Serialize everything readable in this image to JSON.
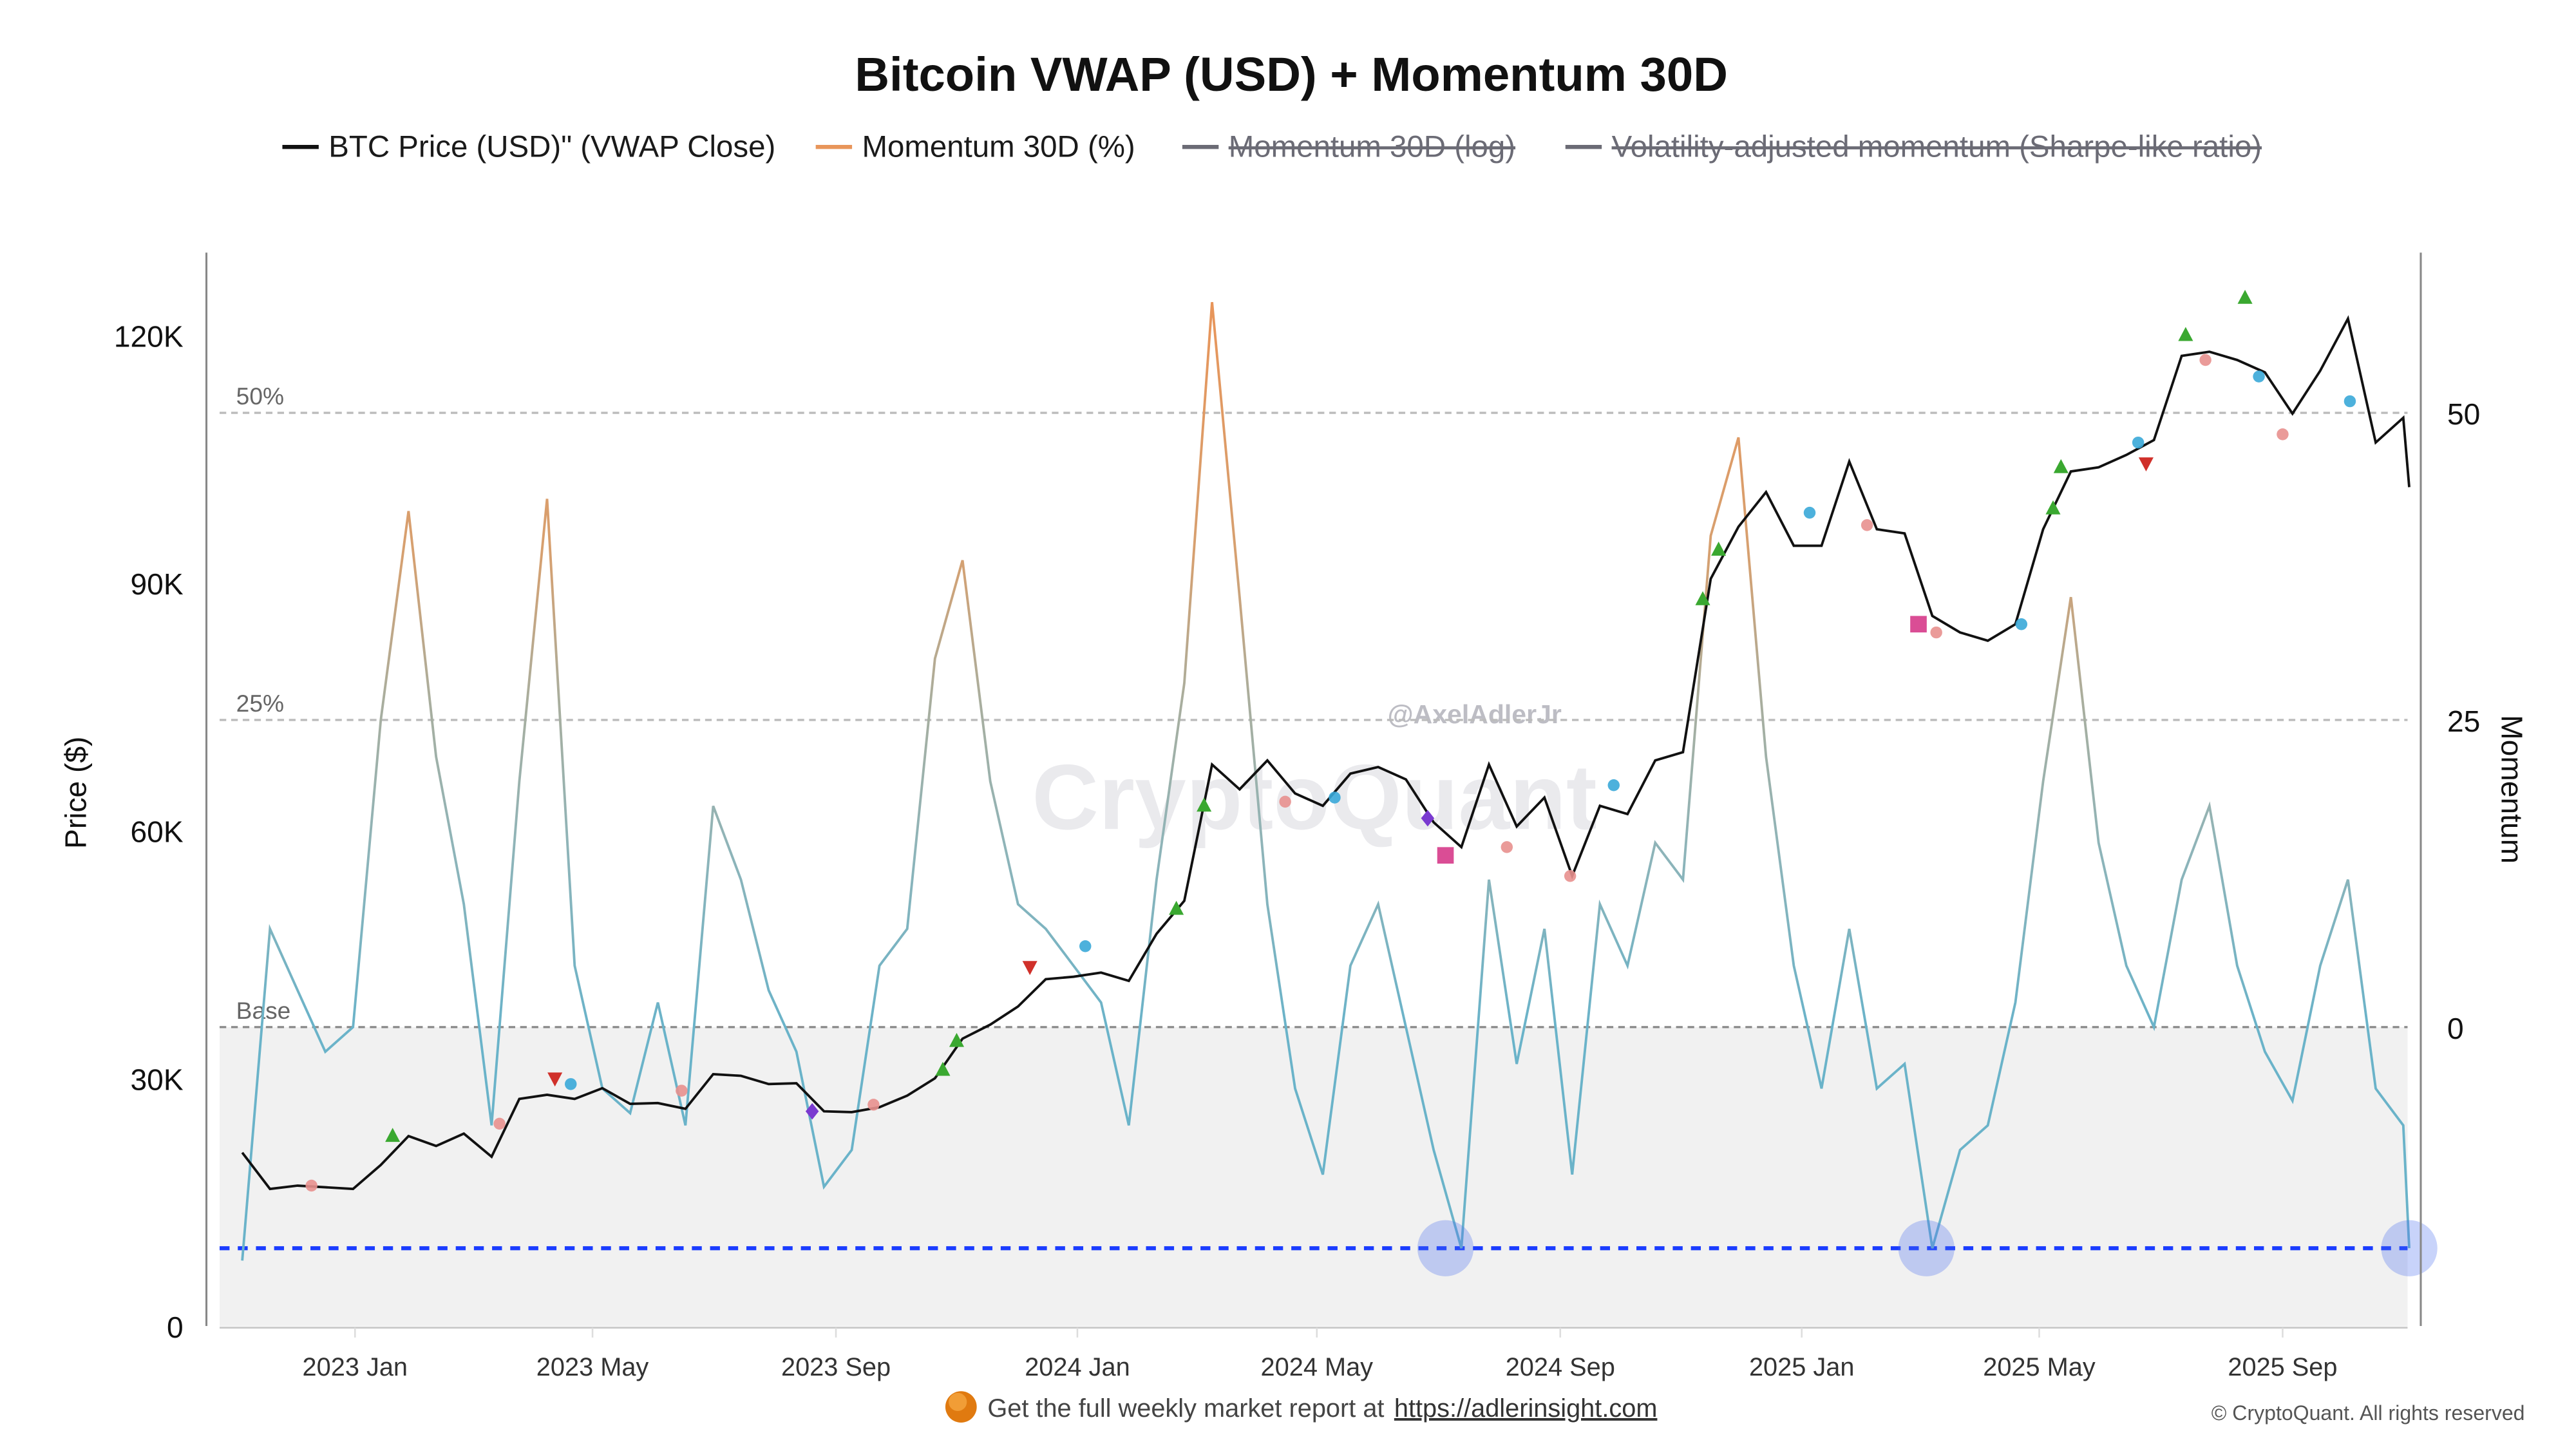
{
  "chart_data": {
    "type": "line",
    "title": "Bitcoin VWAP (USD) + Momentum 30D",
    "legend": {
      "placement": "top",
      "items": [
        {
          "label": "BTC Price (USD)\" (VWAP Close)",
          "color": "#111111",
          "visible": true
        },
        {
          "label": "Momentum 30D (%)",
          "color": "#e8955a",
          "visible": true
        },
        {
          "label": "Momentum 30D (log)",
          "color": "#6b6b75",
          "visible": false
        },
        {
          "label": "Volatility-adjusted momentum (Sharpe-like ratio)",
          "color": "#6b6b75",
          "visible": false
        }
      ]
    },
    "y_left": {
      "label": "Price ($)",
      "ticks": [
        "0",
        "30K",
        "60K",
        "90K",
        "120K"
      ],
      "tick_values": [
        0,
        30000,
        60000,
        90000,
        120000
      ]
    },
    "y_right": {
      "label": "Momentum",
      "ticks": [
        "0",
        "25",
        "50"
      ],
      "tick_values": [
        0,
        25,
        50
      ]
    },
    "x_ticks": [
      {
        "label": "2023 Jan",
        "date": "2023-01-01"
      },
      {
        "label": "2023 May",
        "date": "2023-05-01"
      },
      {
        "label": "2023 Sep",
        "date": "2023-09-01"
      },
      {
        "label": "2024 Jan",
        "date": "2024-01-01"
      },
      {
        "label": "2024 May",
        "date": "2024-05-01"
      },
      {
        "label": "2024 Sep",
        "date": "2024-09-01"
      },
      {
        "label": "2025 Jan",
        "date": "2025-01-01"
      },
      {
        "label": "2025 May",
        "date": "2025-05-01"
      },
      {
        "label": "2025 Sep",
        "date": "2025-09-01"
      }
    ],
    "grid": false,
    "thresholds": [
      {
        "label": "50%",
        "momentum": 50
      },
      {
        "label": "25%",
        "momentum": 25
      },
      {
        "label": "Base",
        "momentum": 0
      }
    ],
    "signal_threshold": {
      "momentum": -18,
      "color": "#1a3cff"
    },
    "highlights": [
      {
        "date": "2024-07-05",
        "momentum": -18
      },
      {
        "date": "2025-03-05",
        "momentum": -18
      },
      {
        "date": "2025-11-04",
        "momentum": -18
      }
    ],
    "dates": [
      "2022-11-05",
      "2022-11-19",
      "2022-12-03",
      "2022-12-17",
      "2022-12-31",
      "2023-01-14",
      "2023-01-28",
      "2023-02-11",
      "2023-02-25",
      "2023-03-11",
      "2023-03-25",
      "2023-04-08",
      "2023-04-22",
      "2023-05-06",
      "2023-05-20",
      "2023-06-03",
      "2023-06-17",
      "2023-07-01",
      "2023-07-15",
      "2023-07-29",
      "2023-08-12",
      "2023-08-26",
      "2023-09-09",
      "2023-09-23",
      "2023-10-07",
      "2023-10-21",
      "2023-11-04",
      "2023-11-18",
      "2023-12-02",
      "2023-12-16",
      "2023-12-30",
      "2024-01-13",
      "2024-01-27",
      "2024-02-10",
      "2024-02-24",
      "2024-03-09",
      "2024-03-23",
      "2024-04-06",
      "2024-04-20",
      "2024-05-04",
      "2024-05-18",
      "2024-06-01",
      "2024-06-15",
      "2024-06-29",
      "2024-07-13",
      "2024-07-27",
      "2024-08-10",
      "2024-08-24",
      "2024-09-07",
      "2024-09-21",
      "2024-10-05",
      "2024-10-19",
      "2024-11-02",
      "2024-11-16",
      "2024-11-30",
      "2024-12-14",
      "2024-12-28",
      "2025-01-11",
      "2025-01-25",
      "2025-02-08",
      "2025-02-22",
      "2025-03-08",
      "2025-03-22",
      "2025-04-05",
      "2025-04-19",
      "2025-05-03",
      "2025-05-17",
      "2025-05-31",
      "2025-06-14",
      "2025-06-28",
      "2025-07-12",
      "2025-07-26",
      "2025-08-09",
      "2025-08-23",
      "2025-09-06",
      "2025-09-20",
      "2025-10-04",
      "2025-10-18",
      "2025-11-01",
      "2025-11-04"
    ],
    "series": [
      {
        "name": "BTC Price (USD)\" (VWAP Close)",
        "axis": "left",
        "values": [
          21000,
          16600,
          17000,
          16800,
          16600,
          19500,
          23000,
          21800,
          23300,
          20500,
          27500,
          28000,
          27500,
          28800,
          26900,
          27000,
          26300,
          30500,
          30300,
          29300,
          29400,
          26000,
          25900,
          26500,
          27900,
          30000,
          34800,
          36500,
          38700,
          42000,
          42300,
          42800,
          41800,
          47500,
          51500,
          68000,
          65000,
          68500,
          64500,
          63000,
          66900,
          67700,
          66200,
          61000,
          58000,
          68000,
          60500,
          64000,
          54500,
          63000,
          62000,
          68500,
          69500,
          90500,
          96800,
          101000,
          94500,
          94500,
          104700,
          96500,
          96000,
          86000,
          84000,
          83000,
          85000,
          96500,
          103500,
          104000,
          105500,
          107300,
          117500,
          118000,
          117000,
          115500,
          110500,
          115700,
          122000,
          107000,
          110000,
          101600
        ]
      },
      {
        "name": "Momentum 30D (%)",
        "axis": "right",
        "values": [
          -19,
          8,
          3,
          -2,
          0,
          25,
          42,
          22,
          10,
          -8,
          20,
          43,
          5,
          -5,
          -7,
          2,
          -8,
          18,
          12,
          3,
          -2,
          -13,
          -10,
          5,
          8,
          30,
          38,
          20,
          10,
          8,
          5,
          2,
          -8,
          12,
          28,
          59,
          35,
          10,
          -5,
          -12,
          5,
          10,
          0,
          -10,
          -18,
          12,
          -3,
          8,
          -12,
          10,
          5,
          15,
          12,
          40,
          48,
          22,
          5,
          -5,
          8,
          -5,
          -3,
          -18,
          -10,
          -8,
          2,
          20,
          35,
          15,
          5,
          0,
          12,
          18,
          5,
          -2,
          -6,
          5,
          12,
          -5,
          -8,
          -18
        ]
      }
    ],
    "signals": [
      {
        "kind": "up-triangle",
        "color": "#3aa830",
        "date": "2023-01-20",
        "price": 23000
      },
      {
        "kind": "up-triangle",
        "color": "#3aa830",
        "date": "2023-10-25",
        "price": 31000
      },
      {
        "kind": "up-triangle",
        "color": "#3aa830",
        "date": "2023-11-01",
        "price": 34500
      },
      {
        "kind": "up-triangle",
        "color": "#3aa830",
        "date": "2024-02-20",
        "price": 50500
      },
      {
        "kind": "up-triangle",
        "color": "#3aa830",
        "date": "2024-03-05",
        "price": 63000
      },
      {
        "kind": "up-triangle",
        "color": "#3aa830",
        "date": "2024-11-12",
        "price": 88000
      },
      {
        "kind": "up-triangle",
        "color": "#3aa830",
        "date": "2024-11-20",
        "price": 94000
      },
      {
        "kind": "up-triangle",
        "color": "#3aa830",
        "date": "2025-05-08",
        "price": 99000
      },
      {
        "kind": "up-triangle",
        "color": "#3aa830",
        "date": "2025-05-12",
        "price": 104000
      },
      {
        "kind": "up-triangle",
        "color": "#3aa830",
        "date": "2025-07-14",
        "price": 120000
      },
      {
        "kind": "up-triangle",
        "color": "#3aa830",
        "date": "2025-08-13",
        "price": 124500
      },
      {
        "kind": "dot",
        "color": "#3aa8d8",
        "date": "2023-04-20",
        "price": 29300
      },
      {
        "kind": "dot",
        "color": "#3aa8d8",
        "date": "2024-01-05",
        "price": 46000
      },
      {
        "kind": "dot",
        "color": "#3aa8d8",
        "date": "2024-05-10",
        "price": 64000
      },
      {
        "kind": "dot",
        "color": "#3aa8d8",
        "date": "2024-09-28",
        "price": 65500
      },
      {
        "kind": "dot",
        "color": "#3aa8d8",
        "date": "2025-01-05",
        "price": 98500
      },
      {
        "kind": "dot",
        "color": "#3aa8d8",
        "date": "2025-04-22",
        "price": 85000
      },
      {
        "kind": "dot",
        "color": "#3aa8d8",
        "date": "2025-06-20",
        "price": 107000
      },
      {
        "kind": "dot",
        "color": "#3aa8d8",
        "date": "2025-08-20",
        "price": 115000
      },
      {
        "kind": "dot",
        "color": "#3aa8d8",
        "date": "2025-10-05",
        "price": 112000
      },
      {
        "kind": "dot",
        "color": "#e8908e",
        "date": "2022-12-10",
        "price": 17000
      },
      {
        "kind": "dot",
        "color": "#e8908e",
        "date": "2023-03-15",
        "price": 24500
      },
      {
        "kind": "dot",
        "color": "#e8908e",
        "date": "2023-06-15",
        "price": 28500
      },
      {
        "kind": "dot",
        "color": "#e8908e",
        "date": "2023-09-20",
        "price": 26800
      },
      {
        "kind": "dot",
        "color": "#e8908e",
        "date": "2024-04-15",
        "price": 63500
      },
      {
        "kind": "dot",
        "color": "#e8908e",
        "date": "2024-08-05",
        "price": 58000
      },
      {
        "kind": "dot",
        "color": "#e8908e",
        "date": "2024-09-06",
        "price": 54500
      },
      {
        "kind": "dot",
        "color": "#e8908e",
        "date": "2025-02-03",
        "price": 97000
      },
      {
        "kind": "dot",
        "color": "#e8908e",
        "date": "2025-03-10",
        "price": 84000
      },
      {
        "kind": "dot",
        "color": "#e8908e",
        "date": "2025-07-24",
        "price": 117000
      },
      {
        "kind": "dot",
        "color": "#e8908e",
        "date": "2025-09-01",
        "price": 108000
      },
      {
        "kind": "down-triangle",
        "color": "#d0302a",
        "date": "2023-04-12",
        "price": 30000
      },
      {
        "kind": "down-triangle",
        "color": "#d0302a",
        "date": "2023-12-08",
        "price": 43500
      },
      {
        "kind": "down-triangle",
        "color": "#d0302a",
        "date": "2025-06-24",
        "price": 104500
      },
      {
        "kind": "square",
        "color": "#d63a8a",
        "date": "2024-07-05",
        "price": 57000
      },
      {
        "kind": "square",
        "color": "#d63a8a",
        "date": "2025-03-01",
        "price": 85000
      },
      {
        "kind": "diamond",
        "color": "#7a3ad0",
        "date": "2023-08-20",
        "price": 26000
      },
      {
        "kind": "diamond",
        "color": "#7a3ad0",
        "date": "2024-06-26",
        "price": 61500
      }
    ]
  },
  "watermark": {
    "brand": "CryptoQuant",
    "author": "@AxelAdlerJr"
  },
  "footer": {
    "icon": "bitcoin-coin-icon",
    "text": "Get the full weekly market report at",
    "link": "https://adlerinsight.com",
    "copyright": "© CryptoQuant. All rights reserved"
  }
}
